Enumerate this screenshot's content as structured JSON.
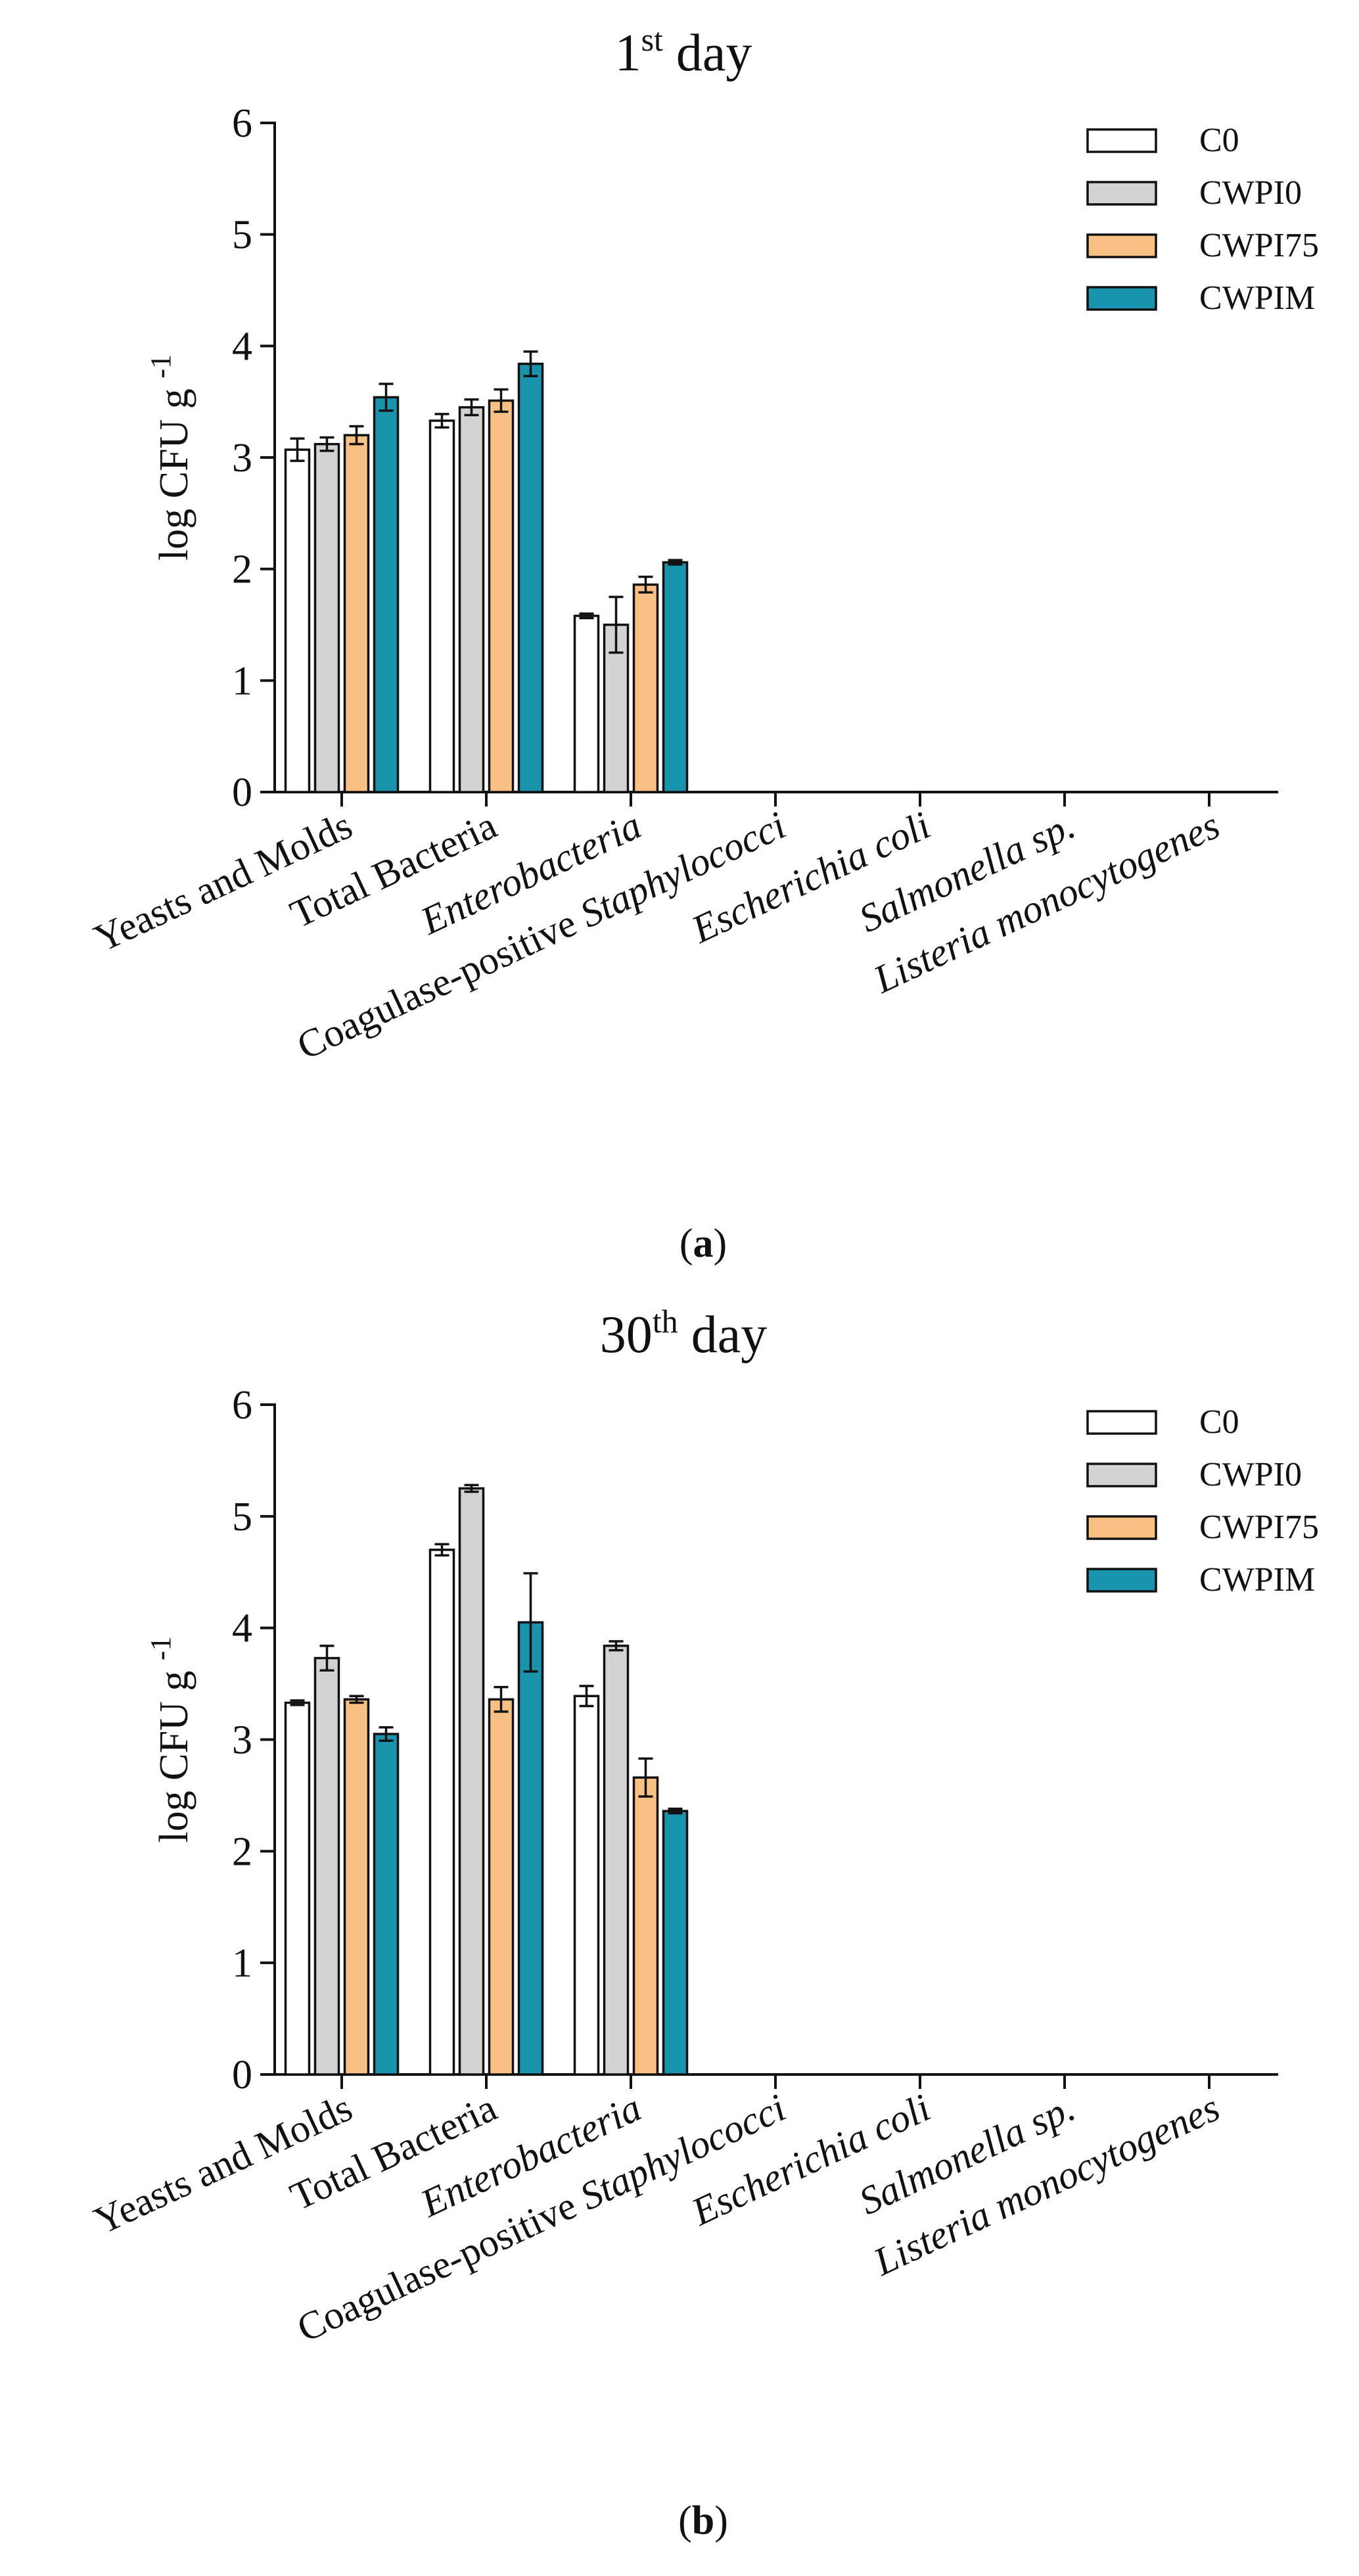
{
  "colors": {
    "C0": "#ffffff",
    "CWPI0": "#d3d3d3",
    "CWPI75": "#f9c084",
    "CWPIM": "#1a93ad",
    "stroke": "#111111"
  },
  "chart_data": [
    {
      "type": "bar",
      "panel_label": "a",
      "title": {
        "base": "1",
        "sup": "st",
        "rest": " day"
      },
      "ylabel": {
        "base": "log CFU g",
        "sup": "-1"
      },
      "ylim": [
        0,
        6
      ],
      "yticks": [
        0,
        1,
        2,
        3,
        4,
        5,
        6
      ],
      "legend_position": "top-right",
      "categories": [
        {
          "label": "Yeasts and Molds",
          "italic": false
        },
        {
          "label": "Total Bacteria",
          "italic": false
        },
        {
          "label": "Enterobacteria",
          "italic": true
        },
        {
          "label": "Coagulase-positive Staphylococci",
          "italic": false,
          "italic_part": "Staphylococci",
          "plain_part": "Coagulase-positive "
        },
        {
          "label": "Escherichia coli",
          "italic": true
        },
        {
          "label": "Salmonella sp.",
          "italic": true
        },
        {
          "label": "Listeria monocytogenes",
          "italic": true
        }
      ],
      "series": [
        {
          "name": "C0",
          "values": [
            3.07,
            3.33,
            1.58,
            0,
            0,
            0,
            0
          ],
          "errors": [
            0.1,
            0.06,
            0.02,
            0,
            0,
            0,
            0
          ]
        },
        {
          "name": "CWPI0",
          "values": [
            3.12,
            3.45,
            1.5,
            0,
            0,
            0,
            0
          ],
          "errors": [
            0.06,
            0.07,
            0.25,
            0,
            0,
            0,
            0
          ]
        },
        {
          "name": "CWPI75",
          "values": [
            3.2,
            3.51,
            1.86,
            0,
            0,
            0,
            0
          ],
          "errors": [
            0.08,
            0.1,
            0.07,
            0,
            0,
            0,
            0
          ]
        },
        {
          "name": "CWPIM",
          "values": [
            3.54,
            3.84,
            2.06,
            0,
            0,
            0,
            0
          ],
          "errors": [
            0.12,
            0.11,
            0.02,
            0,
            0,
            0,
            0
          ]
        }
      ]
    },
    {
      "type": "bar",
      "panel_label": "b",
      "title": {
        "base": "30",
        "sup": "th",
        "rest": " day"
      },
      "ylabel": {
        "base": "log CFU g",
        "sup": "-1"
      },
      "ylim": [
        0,
        6
      ],
      "yticks": [
        0,
        1,
        2,
        3,
        4,
        5,
        6
      ],
      "legend_position": "top-right",
      "categories": [
        {
          "label": "Yeasts and Molds",
          "italic": false
        },
        {
          "label": "Total Bacteria",
          "italic": false
        },
        {
          "label": "Enterobacteria",
          "italic": true
        },
        {
          "label": "Coagulase-positive Staphylococci",
          "italic": false,
          "italic_part": "Staphylococci",
          "plain_part": "Coagulase-positive "
        },
        {
          "label": "Escherichia coli",
          "italic": true
        },
        {
          "label": "Salmonella sp.",
          "italic": true
        },
        {
          "label": "Listeria monocytogenes",
          "italic": true
        }
      ],
      "series": [
        {
          "name": "C0",
          "values": [
            3.33,
            4.7,
            3.39,
            0,
            0,
            0,
            0
          ],
          "errors": [
            0.02,
            0.05,
            0.09,
            0,
            0,
            0,
            0
          ]
        },
        {
          "name": "CWPI0",
          "values": [
            3.73,
            5.25,
            3.84,
            0,
            0,
            0,
            0
          ],
          "errors": [
            0.11,
            0.03,
            0.04,
            0,
            0,
            0,
            0
          ]
        },
        {
          "name": "CWPI75",
          "values": [
            3.36,
            3.36,
            2.66,
            0,
            0,
            0,
            0
          ],
          "errors": [
            0.03,
            0.11,
            0.17,
            0,
            0,
            0,
            0
          ]
        },
        {
          "name": "CWPIM",
          "values": [
            3.05,
            4.05,
            2.36,
            0,
            0,
            0,
            0
          ],
          "errors": [
            0.06,
            0.44,
            0.02,
            0,
            0,
            0,
            0
          ]
        }
      ]
    }
  ]
}
